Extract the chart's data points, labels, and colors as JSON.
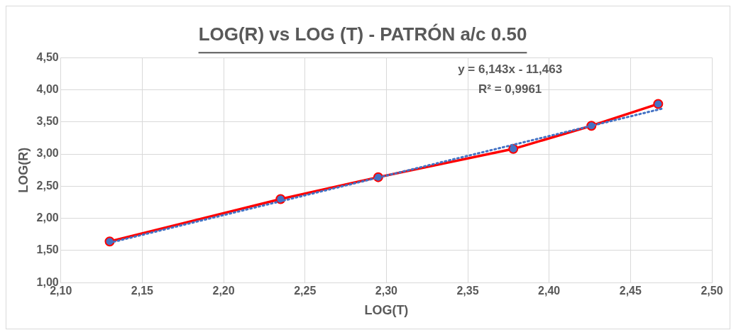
{
  "chart_data": {
    "type": "scatter",
    "title": "LOG(R) vs LOG (T) - PATRÓN a/c 0.50",
    "xlabel": "LOG(T)",
    "ylabel": "LOG(R)",
    "annotations": [
      "y = 6,143x - 11,463",
      "R² = 0,9961"
    ],
    "series": [
      {
        "type": "line",
        "color": "#ff0000",
        "x": [
          2.13,
          2.235,
          2.295,
          2.378,
          2.426,
          2.467
        ],
        "values": [
          1.64,
          2.3,
          2.64,
          3.08,
          3.44,
          3.78
        ],
        "marker": "circle",
        "line_style": "solid"
      },
      {
        "type": "line",
        "color": "#4472c4",
        "x": [
          2.13,
          2.47
        ],
        "values": [
          1.62,
          3.71
        ],
        "marker": "none",
        "line_style": "dotted"
      }
    ],
    "xlim": [
      2.1,
      2.5
    ],
    "xticks": [
      {
        "value": 2.1,
        "label": "2,10"
      },
      {
        "value": 2.15,
        "label": "2,15"
      },
      {
        "value": 2.2,
        "label": "2,20"
      },
      {
        "value": 2.25,
        "label": "2,25"
      },
      {
        "value": 2.3,
        "label": "2,30"
      },
      {
        "value": 2.35,
        "label": "2,35"
      },
      {
        "value": 2.4,
        "label": "2,40"
      },
      {
        "value": 2.45,
        "label": "2,45"
      },
      {
        "value": 2.5,
        "label": "2,50"
      }
    ],
    "ylim": [
      1.0,
      4.5
    ],
    "yticks": [
      {
        "value": 1.0,
        "label": "1,00"
      },
      {
        "value": 1.5,
        "label": "1,50"
      },
      {
        "value": 2.0,
        "label": "2,00"
      },
      {
        "value": 2.5,
        "label": "2,50"
      },
      {
        "value": 3.0,
        "label": "3,00"
      },
      {
        "value": 3.5,
        "label": "3,50"
      },
      {
        "value": 4.0,
        "label": "4,00"
      },
      {
        "value": 4.5,
        "label": "4,50"
      }
    ],
    "grid": true,
    "legend": false
  }
}
